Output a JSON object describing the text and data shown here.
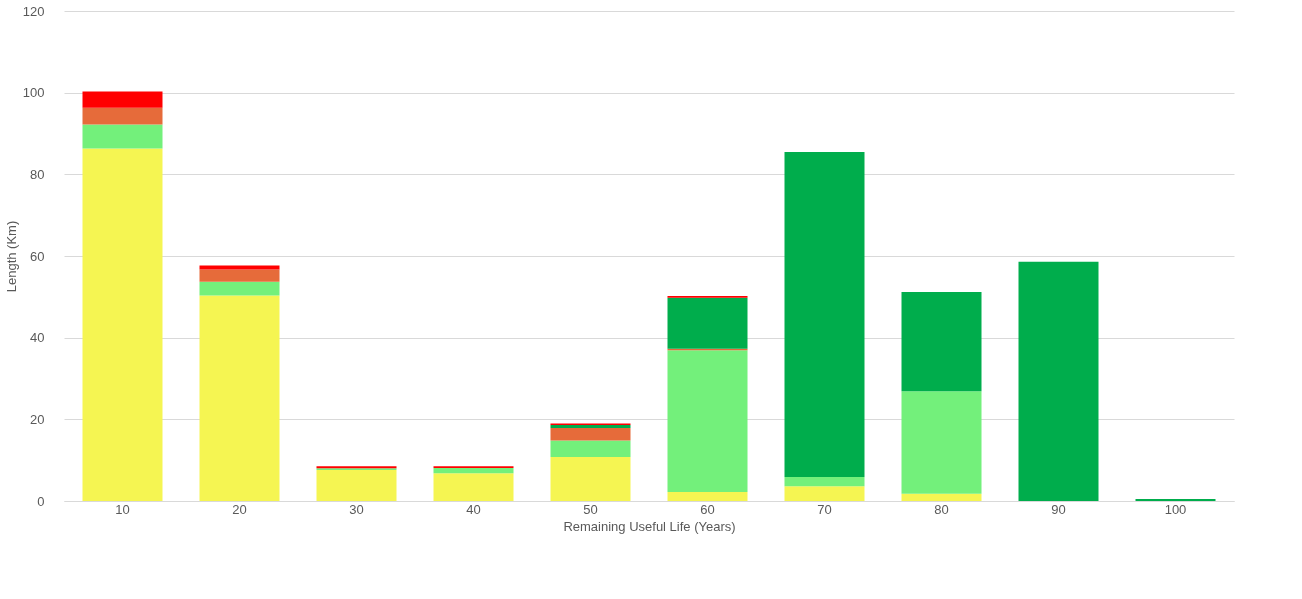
{
  "chart_data": {
    "type": "bar",
    "stacked": true,
    "xlabel": "Remaining Useful Life (Years)",
    "ylabel": "Length (Km)",
    "categories": [
      "10",
      "20",
      "30",
      "40",
      "50",
      "60",
      "70",
      "80",
      "90",
      "100"
    ],
    "series": [
      {
        "color": "#f5f552",
        "values": [
          86.3,
          50.3,
          7.6,
          6.8,
          10.8,
          2.2,
          3.6,
          1.8,
          null,
          null
        ]
      },
      {
        "color": "#73f07b",
        "values": [
          5.9,
          3.4,
          0.4,
          1.3,
          4.0,
          34.7,
          2.3,
          25.1,
          null,
          null
        ]
      },
      {
        "color": "#e66b3a",
        "values": [
          4.1,
          3.0,
          null,
          null,
          3.1,
          0.4,
          null,
          null,
          null,
          null
        ]
      },
      {
        "color": "#00ad4c",
        "values": [
          null,
          null,
          null,
          null,
          0.7,
          12.5,
          79.6,
          24.3,
          58.6,
          0.5
        ]
      },
      {
        "color": "#ff0000",
        "values": [
          4.0,
          1.0,
          0.5,
          0.4,
          0.4,
          0.4,
          null,
          null,
          null,
          null
        ]
      }
    ],
    "ylim": [
      0,
      120
    ],
    "yticks": [
      0,
      20,
      40,
      60,
      80,
      100,
      120
    ],
    "grid": "y",
    "legend": false
  }
}
